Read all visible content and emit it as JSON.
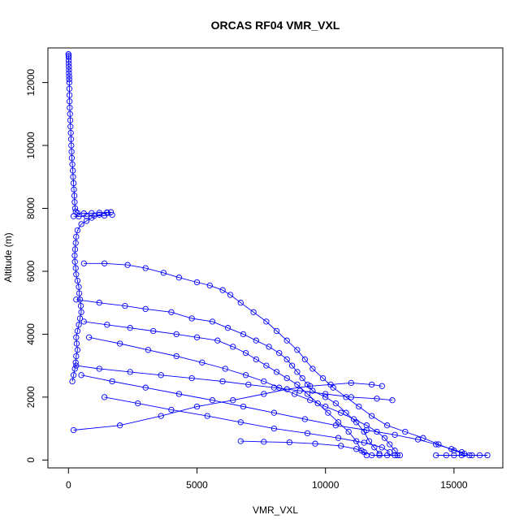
{
  "chart_data": {
    "type": "scatter",
    "title": "ORCAS RF04 VMR_VXL",
    "xlabel": "VMR_VXL",
    "ylabel": "Altitude (m)",
    "xlim": [
      -800,
      16900
    ],
    "ylim": [
      -250,
      13100
    ],
    "xticks": [
      0,
      5000,
      10000,
      15000
    ],
    "yticks": [
      0,
      2000,
      4000,
      6000,
      8000,
      10000,
      12000
    ],
    "grid": false,
    "legend": "none",
    "color": "#0000ff",
    "style": "points connected by lines",
    "series": [
      {
        "values": [
          [
            0,
            12900
          ],
          [
            5,
            12850
          ],
          [
            8,
            12800
          ],
          [
            10,
            12700
          ],
          [
            12,
            12600
          ],
          [
            15,
            12500
          ],
          [
            18,
            12400
          ],
          [
            20,
            12300
          ],
          [
            25,
            12200
          ],
          [
            28,
            12100
          ],
          [
            30,
            12000
          ],
          [
            35,
            11800
          ],
          [
            40,
            11600
          ],
          [
            45,
            11400
          ],
          [
            50,
            11200
          ],
          [
            60,
            11000
          ],
          [
            70,
            10800
          ],
          [
            80,
            10600
          ],
          [
            90,
            10400
          ],
          [
            100,
            10200
          ],
          [
            110,
            10000
          ],
          [
            120,
            9800
          ],
          [
            130,
            9600
          ],
          [
            150,
            9400
          ],
          [
            170,
            9200
          ],
          [
            180,
            9000
          ],
          [
            200,
            8800
          ],
          [
            210,
            8600
          ],
          [
            230,
            8400
          ],
          [
            240,
            8200
          ],
          [
            260,
            8000
          ],
          [
            280,
            7900
          ],
          [
            350,
            7850
          ],
          [
            600,
            7840
          ],
          [
            900,
            7850
          ],
          [
            1200,
            7860
          ],
          [
            1500,
            7870
          ],
          [
            1650,
            7880
          ],
          [
            1500,
            7860
          ],
          [
            1200,
            7800
          ],
          [
            900,
            7700
          ],
          [
            700,
            7600
          ],
          [
            500,
            7500
          ],
          [
            350,
            7300
          ],
          [
            300,
            7100
          ],
          [
            280,
            6900
          ],
          [
            260,
            6700
          ],
          [
            240,
            6500
          ],
          [
            250,
            6300
          ],
          [
            280,
            6100
          ],
          [
            300,
            5900
          ],
          [
            350,
            5700
          ],
          [
            400,
            5500
          ],
          [
            420,
            5300
          ],
          [
            450,
            5100
          ],
          [
            480,
            4900
          ],
          [
            500,
            4700
          ],
          [
            450,
            4500
          ],
          [
            400,
            4300
          ],
          [
            350,
            4100
          ],
          [
            300,
            3900
          ],
          [
            320,
            3700
          ],
          [
            350,
            3500
          ],
          [
            300,
            3300
          ],
          [
            280,
            3100
          ],
          [
            250,
            2900
          ],
          [
            200,
            2700
          ],
          [
            150,
            2500
          ]
        ]
      },
      {
        "values": [
          [
            200,
            7750
          ],
          [
            400,
            7740
          ],
          [
            700,
            7750
          ],
          [
            1000,
            7760
          ],
          [
            1400,
            7770
          ],
          [
            1700,
            7790
          ]
        ]
      },
      {
        "values": [
          [
            600,
            6250
          ],
          [
            1400,
            6250
          ],
          [
            2300,
            6200
          ],
          [
            3000,
            6100
          ],
          [
            3700,
            5950
          ],
          [
            4300,
            5800
          ],
          [
            5000,
            5650
          ],
          [
            5500,
            5550
          ],
          [
            6000,
            5400
          ],
          [
            6300,
            5250
          ],
          [
            6700,
            5000
          ],
          [
            7200,
            4700
          ],
          [
            7700,
            4400
          ],
          [
            8100,
            4100
          ],
          [
            8500,
            3800
          ],
          [
            8900,
            3500
          ],
          [
            9200,
            3200
          ],
          [
            9500,
            2900
          ],
          [
            9900,
            2600
          ],
          [
            10300,
            2300
          ],
          [
            10800,
            2000
          ],
          [
            11300,
            1700
          ],
          [
            11800,
            1400
          ],
          [
            12400,
            1100
          ],
          [
            13100,
            900
          ],
          [
            13800,
            700
          ],
          [
            14400,
            500
          ],
          [
            15000,
            300
          ],
          [
            15400,
            200
          ]
        ]
      },
      {
        "values": [
          [
            300,
            5100
          ],
          [
            1200,
            5000
          ],
          [
            2200,
            4900
          ],
          [
            3000,
            4800
          ],
          [
            4000,
            4700
          ],
          [
            4800,
            4500
          ],
          [
            5600,
            4400
          ],
          [
            6200,
            4200
          ],
          [
            6800,
            4000
          ],
          [
            7300,
            3800
          ],
          [
            7800,
            3600
          ],
          [
            8200,
            3400
          ],
          [
            8500,
            3200
          ],
          [
            8700,
            3000
          ],
          [
            8900,
            2800
          ],
          [
            9100,
            2600
          ],
          [
            9300,
            2400
          ],
          [
            9500,
            2200
          ],
          [
            10000,
            2000
          ],
          [
            10400,
            1800
          ],
          [
            10800,
            1500
          ],
          [
            11200,
            1200
          ],
          [
            11500,
            900
          ],
          [
            11700,
            600
          ],
          [
            11900,
            400
          ],
          [
            12100,
            200
          ]
        ]
      },
      {
        "values": [
          [
            600,
            4400
          ],
          [
            1500,
            4300
          ],
          [
            2400,
            4200
          ],
          [
            3300,
            4100
          ],
          [
            4200,
            4000
          ],
          [
            5000,
            3900
          ],
          [
            5800,
            3800
          ],
          [
            6400,
            3600
          ],
          [
            6900,
            3400
          ],
          [
            7300,
            3200
          ],
          [
            7700,
            3000
          ],
          [
            8100,
            2800
          ],
          [
            8500,
            2600
          ],
          [
            8900,
            2400
          ],
          [
            9300,
            2100
          ],
          [
            9700,
            1800
          ],
          [
            10100,
            1500
          ],
          [
            10500,
            1200
          ],
          [
            10900,
            900
          ],
          [
            11200,
            600
          ],
          [
            11400,
            300
          ],
          [
            11600,
            150
          ]
        ]
      },
      {
        "values": [
          [
            800,
            3900
          ],
          [
            2000,
            3700
          ],
          [
            3100,
            3500
          ],
          [
            4200,
            3300
          ],
          [
            5200,
            3100
          ],
          [
            6100,
            2900
          ],
          [
            6900,
            2700
          ],
          [
            7600,
            2500
          ],
          [
            8200,
            2300
          ],
          [
            8800,
            2100
          ],
          [
            9400,
            1900
          ],
          [
            10000,
            1700
          ],
          [
            10600,
            1500
          ],
          [
            11100,
            1300
          ],
          [
            11600,
            1100
          ],
          [
            12000,
            900
          ],
          [
            12300,
            700
          ],
          [
            12500,
            500
          ],
          [
            12700,
            300
          ],
          [
            12800,
            150
          ]
        ]
      },
      {
        "values": [
          [
            300,
            3000
          ],
          [
            1200,
            2900
          ],
          [
            2400,
            2800
          ],
          [
            3600,
            2700
          ],
          [
            4800,
            2600
          ],
          [
            6000,
            2500
          ],
          [
            7000,
            2400
          ],
          [
            8000,
            2300
          ],
          [
            9000,
            2200
          ],
          [
            10000,
            2100
          ],
          [
            11000,
            2000
          ],
          [
            12000,
            1950
          ],
          [
            12600,
            1900
          ]
        ]
      },
      {
        "values": [
          [
            500,
            2700
          ],
          [
            1700,
            2500
          ],
          [
            3000,
            2300
          ],
          [
            4300,
            2100
          ],
          [
            5600,
            1900
          ],
          [
            6800,
            1700
          ],
          [
            8000,
            1500
          ],
          [
            9200,
            1300
          ],
          [
            10400,
            1100
          ],
          [
            11600,
            950
          ],
          [
            12700,
            800
          ],
          [
            13600,
            650
          ],
          [
            14300,
            500
          ],
          [
            14900,
            350
          ],
          [
            15300,
            250
          ],
          [
            15600,
            150
          ]
        ]
      },
      {
        "values": [
          [
            1400,
            2000
          ],
          [
            2700,
            1800
          ],
          [
            4000,
            1600
          ],
          [
            5400,
            1400
          ],
          [
            6700,
            1200
          ],
          [
            8000,
            1000
          ],
          [
            9300,
            850
          ],
          [
            10500,
            700
          ],
          [
            11500,
            550
          ],
          [
            12200,
            400
          ],
          [
            12500,
            250
          ]
        ]
      },
      {
        "values": [
          [
            200,
            950
          ],
          [
            2000,
            1100
          ],
          [
            3600,
            1400
          ],
          [
            5000,
            1700
          ],
          [
            6400,
            1900
          ],
          [
            7600,
            2100
          ],
          [
            8500,
            2250
          ],
          [
            9400,
            2350
          ],
          [
            10200,
            2400
          ],
          [
            11000,
            2450
          ],
          [
            11800,
            2400
          ],
          [
            12200,
            2350
          ]
        ]
      },
      {
        "values": [
          [
            6700,
            600
          ],
          [
            7600,
            580
          ],
          [
            8600,
            560
          ],
          [
            9600,
            520
          ],
          [
            10600,
            450
          ],
          [
            11200,
            350
          ],
          [
            11500,
            250
          ],
          [
            11800,
            150
          ],
          [
            12100,
            150
          ],
          [
            12400,
            150
          ],
          [
            12700,
            150
          ],
          [
            12900,
            150
          ]
        ]
      },
      {
        "values": [
          [
            14300,
            150
          ],
          [
            14700,
            150
          ],
          [
            15000,
            150
          ],
          [
            15300,
            150
          ],
          [
            15700,
            150
          ],
          [
            16000,
            150
          ],
          [
            16300,
            150
          ]
        ]
      }
    ]
  }
}
